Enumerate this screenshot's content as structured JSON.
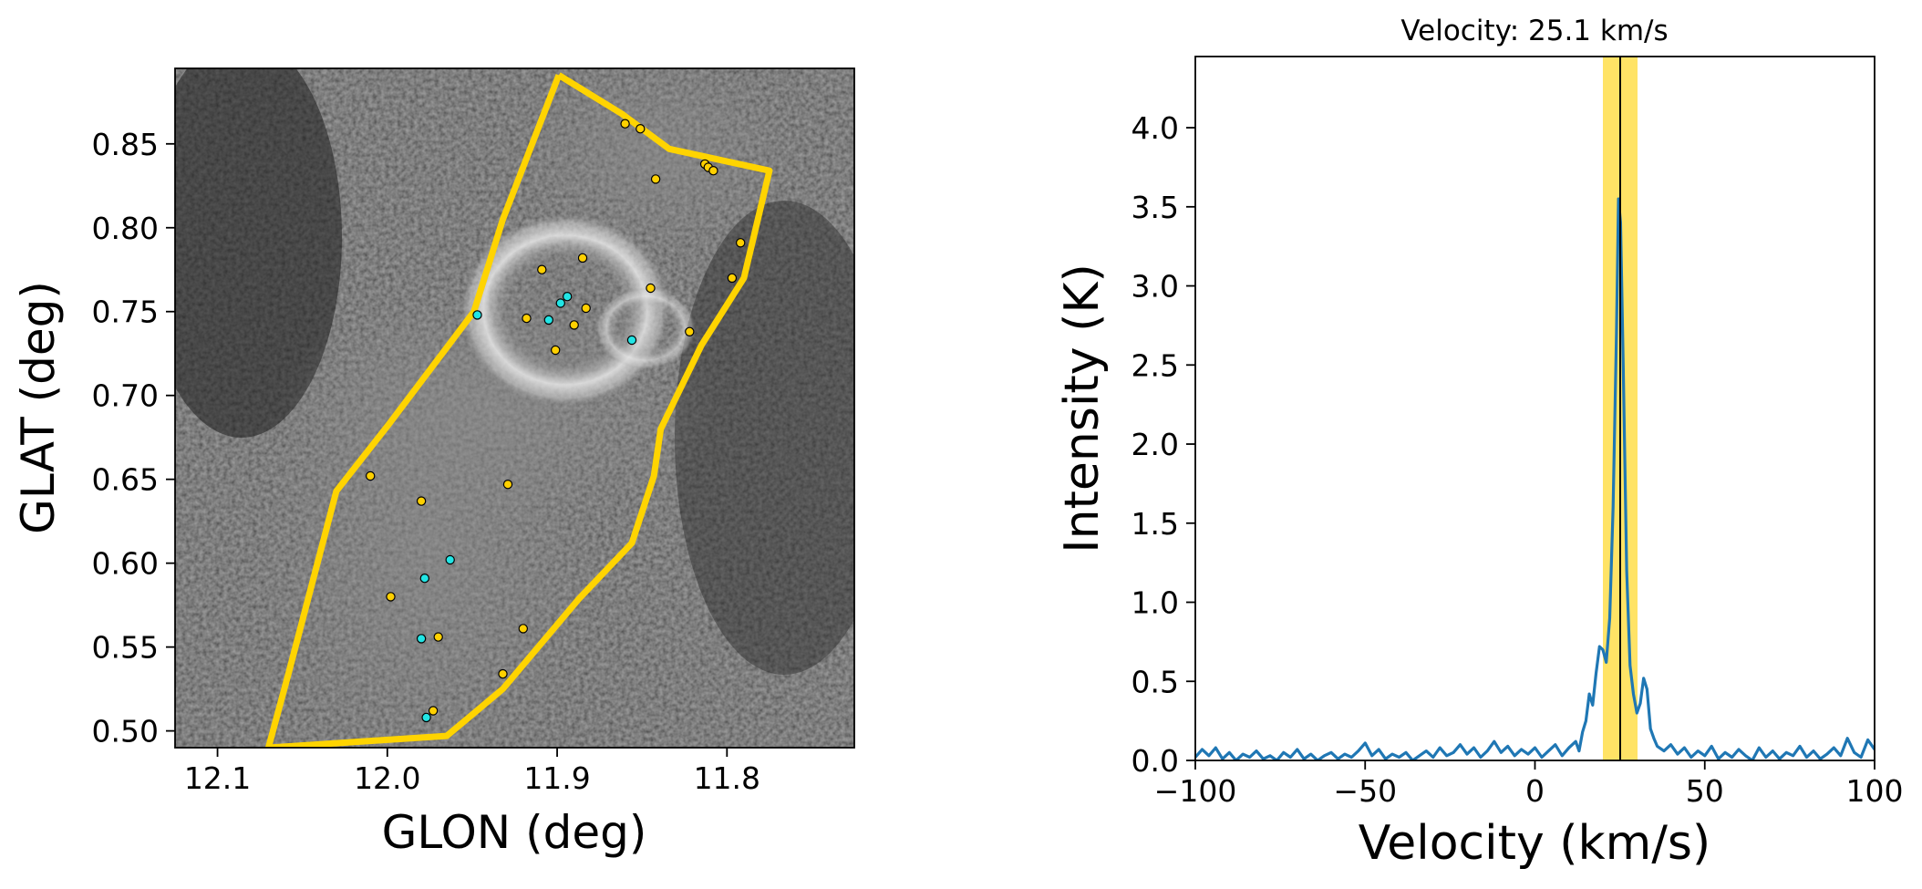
{
  "chart_data": [
    {
      "type": "scatter",
      "panel": "sky-map",
      "xlabel": "GLON (deg)",
      "ylabel": "GLAT (deg)",
      "xlim": [
        12.125,
        11.725
      ],
      "ylim": [
        0.49,
        0.895
      ],
      "x_ticks": [
        12.1,
        12.0,
        11.9,
        11.8
      ],
      "x_tick_labels": [
        "12.1",
        "12.0",
        "11.9",
        "11.8"
      ],
      "y_ticks": [
        0.5,
        0.55,
        0.6,
        0.65,
        0.7,
        0.75,
        0.8,
        0.85
      ],
      "y_tick_labels": [
        "0.50",
        "0.55",
        "0.60",
        "0.65",
        "0.70",
        "0.75",
        "0.80",
        "0.85"
      ],
      "background": "grayscale intensity map",
      "region_polygon": {
        "color": "#FFD400",
        "glon": [
          11.899,
          11.862,
          11.834,
          11.775,
          11.79,
          11.815,
          11.839,
          11.843,
          11.856,
          11.887,
          11.932,
          11.965,
          12.07,
          12.058,
          12.03,
          11.999,
          11.949,
          11.932,
          11.899
        ],
        "glat": [
          0.891,
          0.868,
          0.847,
          0.834,
          0.77,
          0.73,
          0.68,
          0.652,
          0.612,
          0.579,
          0.525,
          0.497,
          0.49,
          0.535,
          0.643,
          0.683,
          0.75,
          0.805,
          0.891
        ]
      },
      "series": [
        {
          "color": "#FFD000",
          "points": [
            [
              11.86,
              0.862
            ],
            [
              11.851,
              0.859
            ],
            [
              11.813,
              0.838
            ],
            [
              11.811,
              0.836
            ],
            [
              11.808,
              0.834
            ],
            [
              11.842,
              0.829
            ],
            [
              11.792,
              0.791
            ],
            [
              11.885,
              0.782
            ],
            [
              11.909,
              0.775
            ],
            [
              11.845,
              0.764
            ],
            [
              11.797,
              0.77
            ],
            [
              11.883,
              0.752
            ],
            [
              11.918,
              0.746
            ],
            [
              11.89,
              0.742
            ],
            [
              11.822,
              0.738
            ],
            [
              11.901,
              0.727
            ],
            [
              12.01,
              0.652
            ],
            [
              11.929,
              0.647
            ],
            [
              11.98,
              0.637
            ],
            [
              11.998,
              0.58
            ],
            [
              11.92,
              0.561
            ],
            [
              11.97,
              0.556
            ],
            [
              11.932,
              0.534
            ],
            [
              11.973,
              0.512
            ]
          ]
        },
        {
          "color": "#22E5E5",
          "points": [
            [
              11.894,
              0.759
            ],
            [
              11.898,
              0.755
            ],
            [
              11.947,
              0.748
            ],
            [
              11.905,
              0.745
            ],
            [
              11.856,
              0.733
            ],
            [
              11.963,
              0.602
            ],
            [
              11.978,
              0.591
            ],
            [
              11.98,
              0.555
            ],
            [
              11.977,
              0.508
            ]
          ]
        }
      ]
    },
    {
      "type": "line",
      "panel": "spectrum",
      "title": "Velocity: 25.1 km/s",
      "xlabel": "Velocity (km/s)",
      "ylabel": "Intensity (K)",
      "xlim": [
        -100,
        100
      ],
      "ylim": [
        0.0,
        4.45
      ],
      "x_ticks": [
        -100,
        -50,
        0,
        50,
        100
      ],
      "x_tick_labels": [
        "−100",
        "−50",
        "0",
        "50",
        "100"
      ],
      "y_ticks": [
        0.0,
        0.5,
        1.0,
        1.5,
        2.0,
        2.5,
        3.0,
        3.5,
        4.0
      ],
      "y_tick_labels": [
        "0.0",
        "0.5",
        "1.0",
        "1.5",
        "2.0",
        "2.5",
        "3.0",
        "3.5",
        "4.0"
      ],
      "line_color": "#1F77B4",
      "highlight_band": {
        "x": [
          20.0,
          30.2
        ],
        "color": "#FFE366"
      },
      "marker_velocity": 25.1,
      "series": [
        {
          "x": [
            -100,
            -98,
            -96,
            -94,
            -92,
            -90,
            -88,
            -86,
            -84,
            -82,
            -80,
            -78,
            -76,
            -74,
            -72,
            -70,
            -68,
            -66,
            -64,
            -62,
            -60,
            -58,
            -56,
            -54,
            -52,
            -50,
            -48,
            -46,
            -44,
            -42,
            -40,
            -38,
            -36,
            -34,
            -32,
            -30,
            -28,
            -26,
            -24,
            -22,
            -20,
            -18,
            -16,
            -14,
            -12,
            -10,
            -8,
            -6,
            -4,
            -2,
            0,
            2,
            4,
            6,
            8,
            10,
            12,
            13,
            14,
            15,
            16,
            17,
            18,
            19,
            20,
            21,
            22,
            23,
            24,
            24.6,
            25.2,
            26,
            27,
            28,
            29,
            30,
            31,
            32,
            33,
            34,
            35,
            36,
            38,
            40,
            42,
            44,
            46,
            48,
            50,
            52,
            54,
            56,
            58,
            60,
            62,
            64,
            66,
            68,
            70,
            72,
            74,
            76,
            78,
            80,
            82,
            84,
            86,
            88,
            90,
            92,
            94,
            96,
            98,
            100
          ],
          "y": [
            0.02,
            0.07,
            0.03,
            0.08,
            0.01,
            0.05,
            0.0,
            0.04,
            0.02,
            0.06,
            0.01,
            0.03,
            0.0,
            0.05,
            0.02,
            0.07,
            0.01,
            0.04,
            0.0,
            0.03,
            0.05,
            0.01,
            0.04,
            0.02,
            0.06,
            0.11,
            0.03,
            0.07,
            0.01,
            0.04,
            0.02,
            0.05,
            0.0,
            0.03,
            0.06,
            0.02,
            0.08,
            0.03,
            0.05,
            0.1,
            0.04,
            0.08,
            0.02,
            0.06,
            0.12,
            0.05,
            0.09,
            0.03,
            0.07,
            0.04,
            0.08,
            0.02,
            0.06,
            0.1,
            0.03,
            0.08,
            0.12,
            0.06,
            0.18,
            0.25,
            0.42,
            0.35,
            0.55,
            0.72,
            0.7,
            0.62,
            0.9,
            1.6,
            2.7,
            3.55,
            3.4,
            2.5,
            1.2,
            0.6,
            0.42,
            0.3,
            0.36,
            0.52,
            0.45,
            0.2,
            0.14,
            0.09,
            0.06,
            0.1,
            0.04,
            0.08,
            0.02,
            0.06,
            0.03,
            0.09,
            0.01,
            0.05,
            0.02,
            0.07,
            0.03,
            0.0,
            0.08,
            0.02,
            0.06,
            0.01,
            0.05,
            0.03,
            0.09,
            0.02,
            0.06,
            0.01,
            0.04,
            0.08,
            0.03,
            0.14,
            0.05,
            0.02,
            0.13,
            0.07
          ]
        }
      ]
    }
  ]
}
